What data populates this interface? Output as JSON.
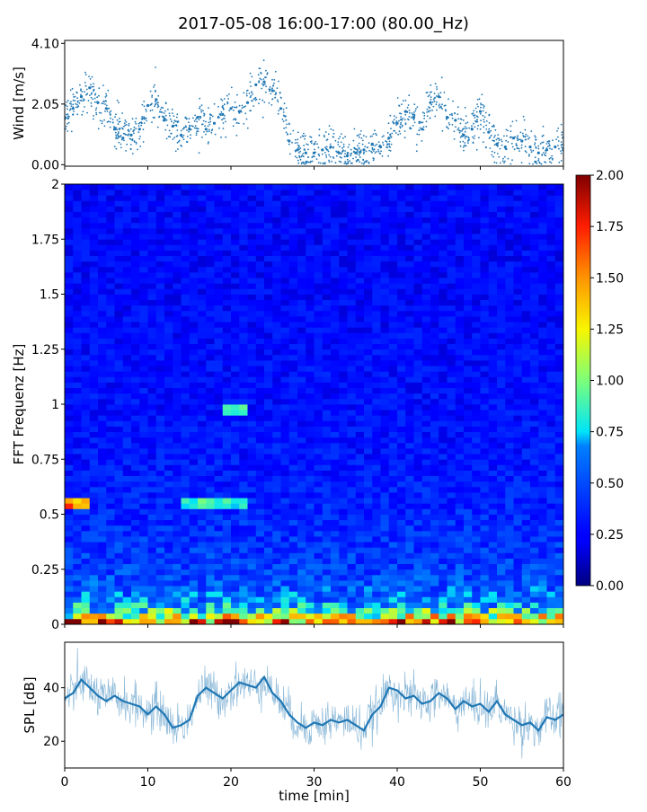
{
  "figure": {
    "title": "2017-05-08 16:00-17:00 (80.00_Hz)"
  },
  "chart_data": [
    {
      "type": "scatter",
      "title": "",
      "xlabel": "",
      "ylabel": "Wind [m/s]",
      "xlim": [
        0,
        60
      ],
      "ylim": [
        -0.05,
        4.2
      ],
      "yticks": [
        "0.00",
        "2.05",
        "4.10"
      ],
      "marker": "dot",
      "color": "#1f77b4",
      "series": [
        {
          "x": [
            0,
            1,
            2,
            3,
            4,
            5,
            6,
            7,
            8,
            9,
            10,
            11,
            12,
            13,
            14,
            15,
            16,
            17,
            18,
            19,
            20,
            21,
            22,
            23,
            24,
            25,
            26,
            27,
            28,
            29,
            30,
            31,
            32,
            33,
            34,
            35,
            36,
            37,
            38,
            39,
            40,
            41,
            42,
            43,
            44,
            45,
            46,
            47,
            48,
            49,
            50,
            51,
            52,
            53,
            54,
            55,
            56,
            57,
            58,
            59,
            60
          ],
          "y": [
            1.6,
            1.9,
            2.3,
            2.6,
            2.1,
            1.9,
            1.2,
            0.9,
            1.0,
            1.2,
            2.0,
            2.2,
            1.5,
            1.3,
            1.0,
            1.2,
            1.6,
            1.2,
            1.4,
            1.7,
            1.9,
            1.8,
            2.1,
            2.7,
            2.8,
            2.5,
            1.9,
            0.8,
            0.5,
            0.4,
            0.4,
            0.5,
            0.6,
            0.4,
            0.3,
            0.4,
            0.5,
            0.7,
            0.6,
            0.9,
            1.4,
            1.8,
            1.6,
            1.2,
            2.1,
            2.3,
            1.6,
            1.5,
            1.0,
            1.2,
            1.8,
            1.1,
            0.7,
            0.6,
            0.9,
            0.8,
            0.6,
            0.4,
            0.5,
            0.6,
            0.5
          ]
        }
      ]
    },
    {
      "type": "heatmap",
      "title": "",
      "xlabel": "",
      "ylabel": "FFT Frequenz [Hz]",
      "xlim": [
        0,
        60
      ],
      "ylim": [
        0,
        2
      ],
      "yticks": [
        "0",
        "0.25",
        "0.5",
        "0.75",
        "1",
        "1.25",
        "1.5",
        "1.75",
        "2"
      ],
      "colormap": "jet",
      "clim": [
        0,
        2
      ],
      "colorbar_ticks": [
        "0.00",
        "0.25",
        "0.50",
        "0.75",
        "1.00",
        "1.25",
        "1.50",
        "1.75",
        "2.00"
      ],
      "z_description_profile": {
        "freq_hz": [
          0.0,
          0.05,
          0.1,
          0.25,
          0.5,
          0.75,
          1.0,
          1.5,
          2.0
        ],
        "typical_level": [
          1.8,
          1.0,
          0.6,
          0.45,
          0.35,
          0.3,
          0.28,
          0.25,
          0.25
        ]
      },
      "notable_features": [
        {
          "x_min": [
            0,
            3
          ],
          "freq_hz": 0.55,
          "level": 1.6
        },
        {
          "x_min": [
            14,
            22
          ],
          "freq_hz": 0.55,
          "level": 0.9
        },
        {
          "x_min": [
            19,
            22
          ],
          "freq_hz": 0.98,
          "level": 0.9
        }
      ]
    },
    {
      "type": "line",
      "title": "",
      "xlabel": "time [min]",
      "ylabel": "SPL [dB]",
      "xlim": [
        0,
        60
      ],
      "xticks": [
        "0",
        "10",
        "20",
        "30",
        "40",
        "50",
        "60"
      ],
      "ylim": [
        10,
        57
      ],
      "yticks": [
        "20",
        "40"
      ],
      "color": "#1f77b4",
      "series": [
        {
          "x": [
            0,
            1,
            2,
            3,
            4,
            5,
            6,
            7,
            8,
            9,
            10,
            11,
            12,
            13,
            14,
            15,
            16,
            17,
            18,
            19,
            20,
            21,
            22,
            23,
            24,
            25,
            26,
            27,
            28,
            29,
            30,
            31,
            32,
            33,
            34,
            35,
            36,
            37,
            38,
            39,
            40,
            41,
            42,
            43,
            44,
            45,
            46,
            47,
            48,
            49,
            50,
            51,
            52,
            53,
            54,
            55,
            56,
            57,
            58,
            59,
            60
          ],
          "y": [
            36,
            38,
            43,
            40,
            37,
            35,
            37,
            35,
            34,
            33,
            30,
            33,
            30,
            25,
            26,
            28,
            37,
            40,
            38,
            36,
            39,
            42,
            41,
            40,
            44,
            38,
            35,
            30,
            27,
            25,
            27,
            26,
            28,
            27,
            28,
            26,
            24,
            30,
            33,
            40,
            39,
            36,
            37,
            34,
            35,
            38,
            36,
            32,
            35,
            33,
            34,
            31,
            35,
            30,
            28,
            26,
            27,
            24,
            29,
            28,
            30
          ]
        }
      ]
    }
  ]
}
